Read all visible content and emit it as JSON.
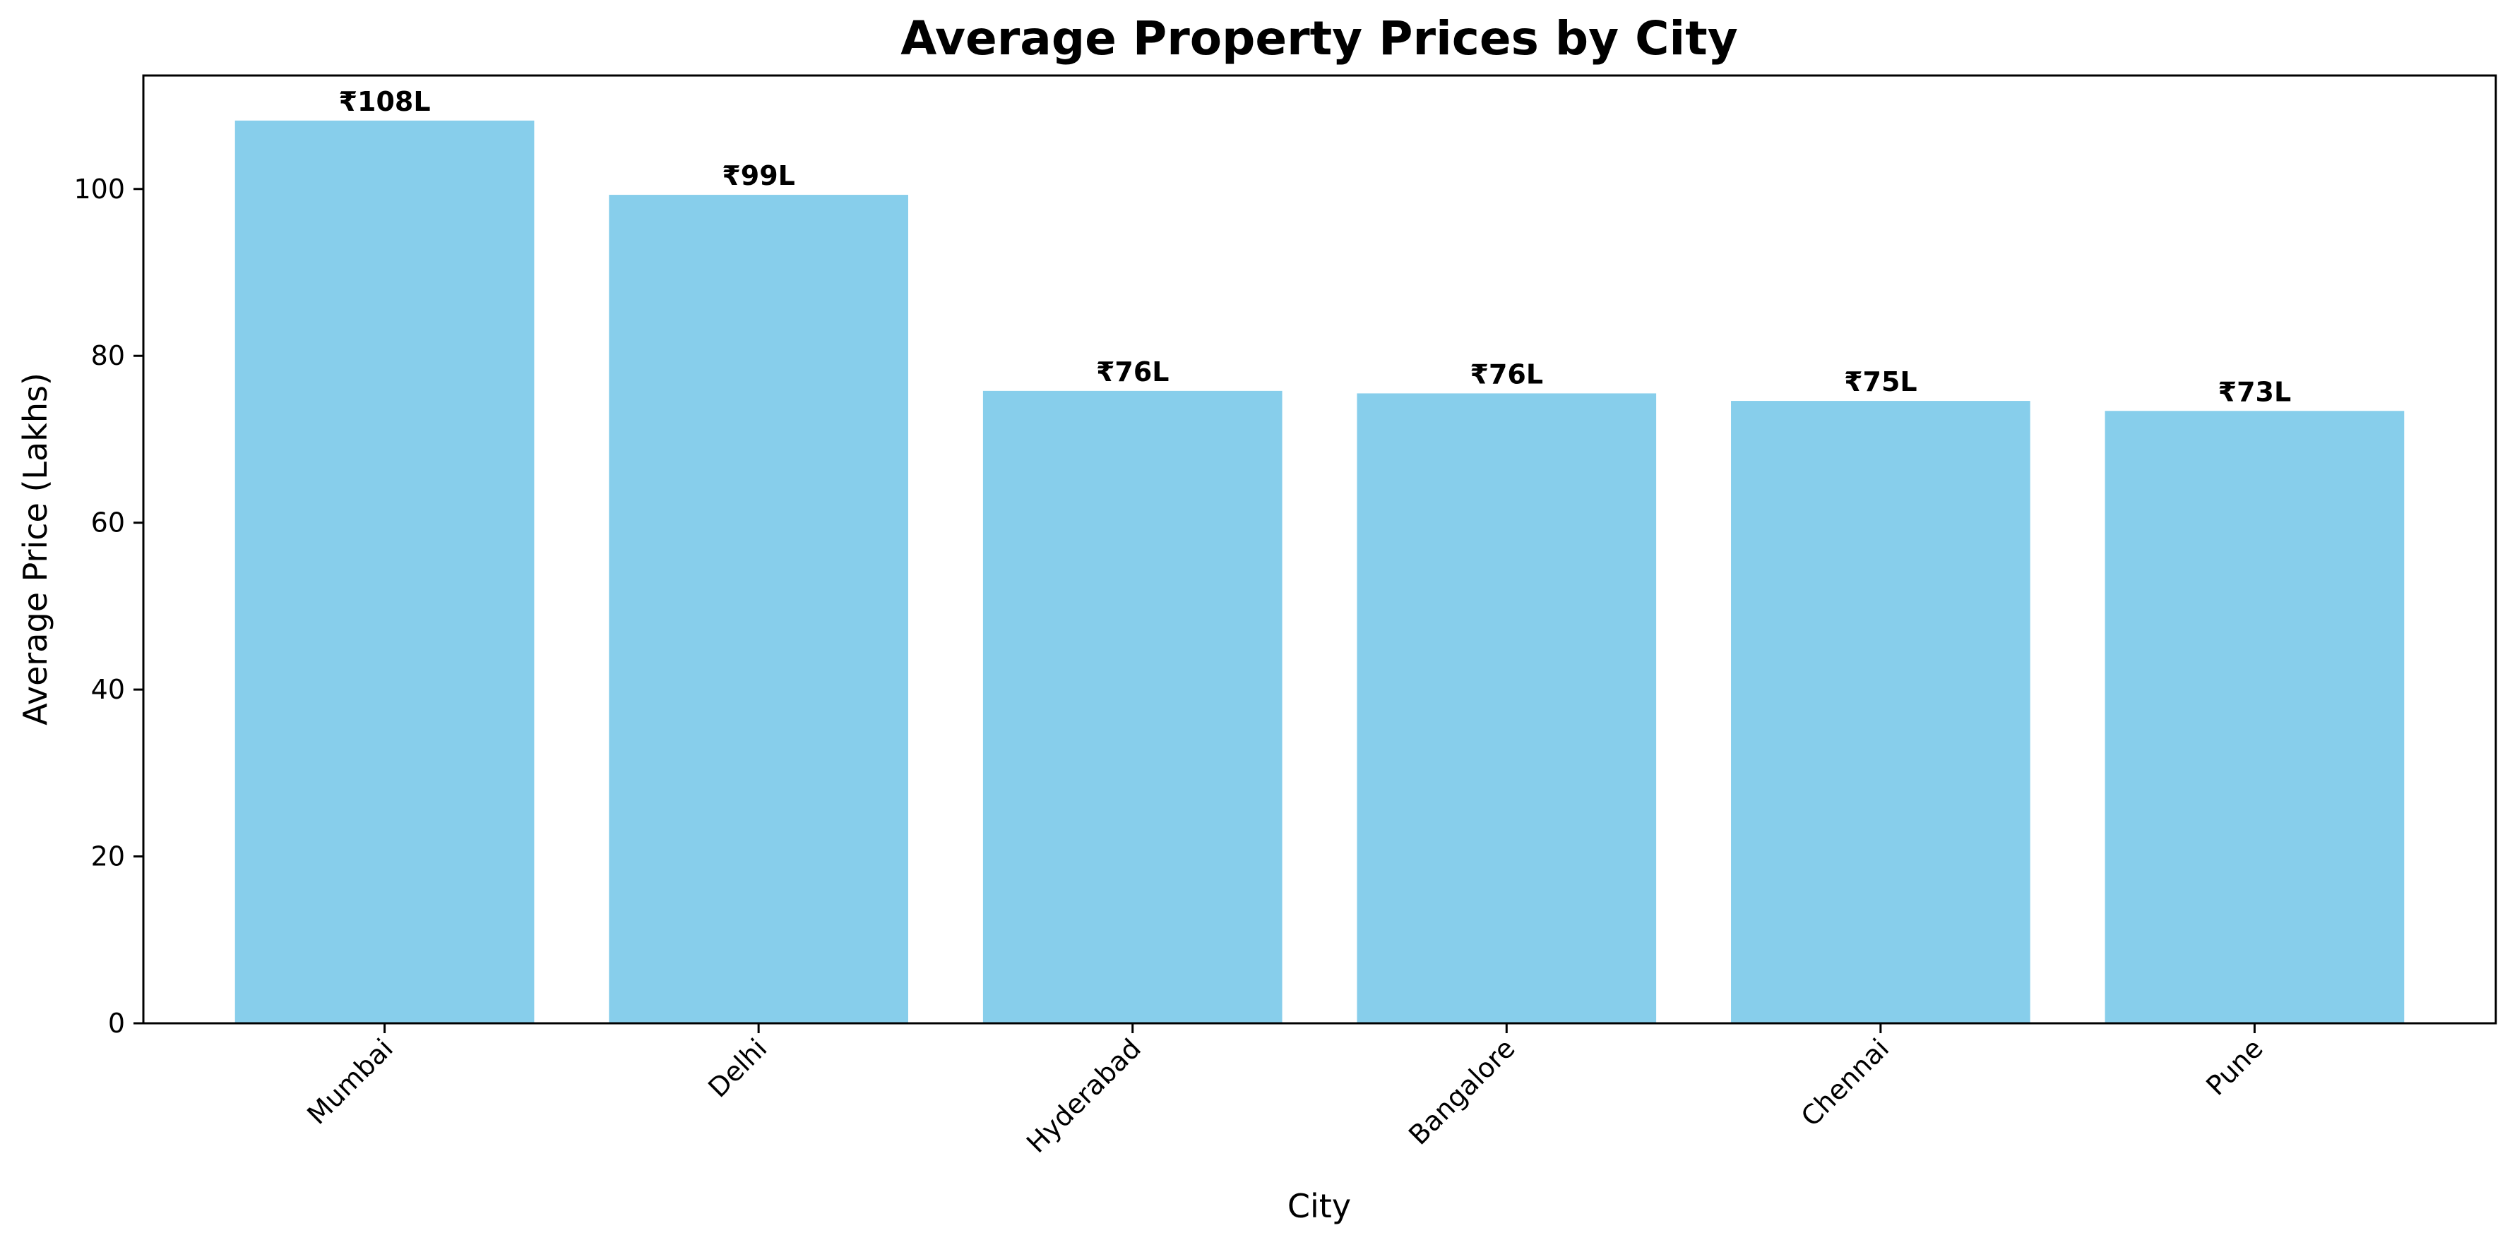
{
  "chart_data": {
    "type": "bar",
    "title": "Average Property Prices by City",
    "xlabel": "City",
    "ylabel": "Average Price (Lakhs)",
    "categories": [
      "Mumbai",
      "Delhi",
      "Hyderabad",
      "Bangalore",
      "Chennai",
      "Pune"
    ],
    "values": [
      108.2,
      99.3,
      75.8,
      75.5,
      74.6,
      73.4
    ],
    "data_labels": [
      "₹108L",
      "₹99L",
      "₹76L",
      "₹76L",
      "₹75L",
      "₹73L"
    ],
    "ylim": [
      0,
      113.6
    ],
    "yticks": [
      0,
      20,
      40,
      60,
      80,
      100
    ],
    "grid": false,
    "legend": "none",
    "bar_color": "#87CEEB"
  }
}
